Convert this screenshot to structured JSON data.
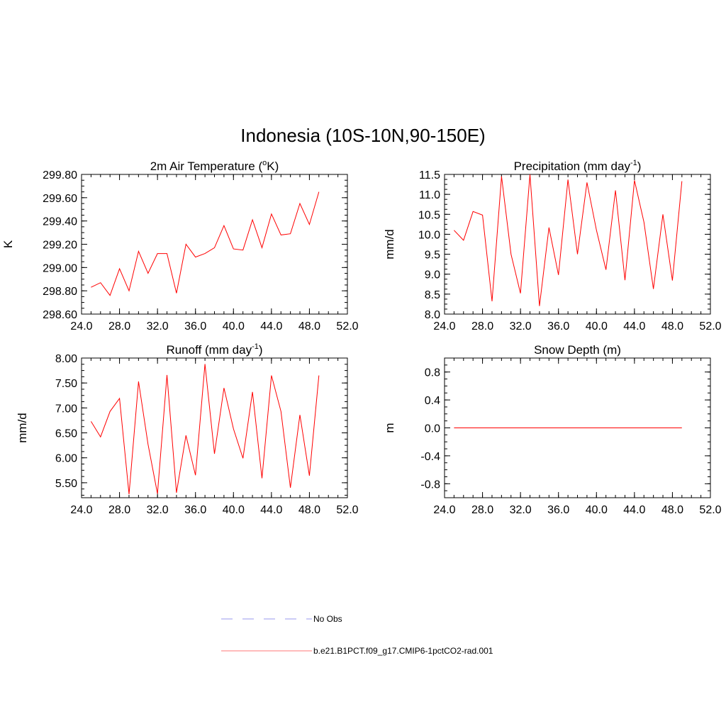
{
  "figure": {
    "title": "Indonesia (10S-10N,90-150E)"
  },
  "legend": {
    "items": [
      {
        "label": "No Obs",
        "color": "#9999ee",
        "dash": true
      },
      {
        "label": "b.e21.B1PCT.f09_g17.CMIP6-1pctCO2-rad.001",
        "color": "#ff7777",
        "dash": false
      }
    ]
  },
  "chart_data": [
    {
      "type": "line",
      "title": "2m Air Temperature (",
      "title_sup": "o",
      "title_after": "K)",
      "ylabel": "K",
      "xlim": [
        24,
        52
      ],
      "ylim": [
        298.6,
        299.8
      ],
      "xticks": [
        24,
        28,
        32,
        36,
        40,
        44,
        48,
        52
      ],
      "xtick_labels": [
        "24.0",
        "28.0",
        "32.0",
        "36.0",
        "40.0",
        "44.0",
        "48.0",
        "52.0"
      ],
      "yticks": [
        298.6,
        298.8,
        299.0,
        299.2,
        299.4,
        299.6,
        299.8
      ],
      "ytick_labels": [
        "298.60",
        "298.80",
        "299.00",
        "299.20",
        "299.40",
        "299.60",
        "299.80"
      ],
      "grid": false,
      "series": [
        {
          "color": "#ff0000",
          "x": [
            25,
            26,
            27,
            28,
            29,
            30,
            31,
            32,
            33,
            34,
            35,
            36,
            37,
            38,
            39,
            40,
            41,
            42,
            43,
            44,
            45,
            46,
            47,
            48,
            49
          ],
          "y": [
            298.83,
            298.87,
            298.76,
            298.99,
            298.8,
            299.14,
            298.95,
            299.12,
            299.12,
            298.78,
            299.2,
            299.09,
            299.12,
            299.17,
            299.36,
            299.16,
            299.15,
            299.41,
            299.17,
            299.46,
            299.28,
            299.29,
            299.55,
            299.37,
            299.65
          ]
        }
      ]
    },
    {
      "type": "line",
      "title": "Precipitation (mm day",
      "title_sup": "-1",
      "title_after": ")",
      "ylabel": "mm/d",
      "xlim": [
        24,
        52
      ],
      "ylim": [
        8.0,
        11.5
      ],
      "xticks": [
        24,
        28,
        32,
        36,
        40,
        44,
        48,
        52
      ],
      "xtick_labels": [
        "24.0",
        "28.0",
        "32.0",
        "36.0",
        "40.0",
        "44.0",
        "48.0",
        "52.0"
      ],
      "yticks": [
        8.0,
        8.5,
        9.0,
        9.5,
        10.0,
        10.5,
        11.0,
        11.5
      ],
      "ytick_labels": [
        "8.0",
        "8.5",
        "9.0",
        "9.5",
        "10.0",
        "10.5",
        "11.0",
        "11.5"
      ],
      "grid": false,
      "series": [
        {
          "color": "#ff0000",
          "x": [
            25,
            26,
            27,
            28,
            29,
            30,
            31,
            32,
            33,
            34,
            35,
            36,
            37,
            38,
            39,
            40,
            41,
            42,
            43,
            44,
            45,
            46,
            47,
            48,
            49
          ],
          "y": [
            10.1,
            9.85,
            10.57,
            10.48,
            8.32,
            11.45,
            9.5,
            8.52,
            11.5,
            8.2,
            10.17,
            8.98,
            11.37,
            9.5,
            11.3,
            10.1,
            9.11,
            11.1,
            8.85,
            11.35,
            10.3,
            8.63,
            10.5,
            8.84,
            11.33
          ]
        }
      ]
    },
    {
      "type": "line",
      "title": "Runoff (mm day",
      "title_sup": "-1",
      "title_after": ")",
      "ylabel": "mm/d",
      "xlim": [
        24,
        52
      ],
      "ylim": [
        5.2,
        8.0
      ],
      "xticks": [
        24,
        28,
        32,
        36,
        40,
        44,
        48,
        52
      ],
      "xtick_labels": [
        "24.0",
        "28.0",
        "32.0",
        "36.0",
        "40.0",
        "44.0",
        "48.0",
        "52.0"
      ],
      "yticks": [
        5.5,
        6.0,
        6.5,
        7.0,
        7.5,
        8.0
      ],
      "ytick_labels": [
        "5.50",
        "6.00",
        "6.50",
        "7.00",
        "7.50",
        "8.00"
      ],
      "grid": false,
      "series": [
        {
          "color": "#ff0000",
          "x": [
            25,
            26,
            27,
            28,
            29,
            30,
            31,
            32,
            33,
            34,
            35,
            36,
            37,
            38,
            39,
            40,
            41,
            42,
            43,
            44,
            45,
            46,
            47,
            48,
            49
          ],
          "y": [
            6.73,
            6.42,
            6.93,
            7.19,
            5.27,
            7.53,
            6.27,
            5.28,
            7.66,
            5.3,
            6.45,
            5.65,
            7.88,
            6.08,
            7.4,
            6.58,
            5.99,
            7.32,
            5.59,
            7.65,
            6.93,
            5.4,
            6.86,
            5.64,
            7.65
          ]
        }
      ]
    },
    {
      "type": "line",
      "title": "Snow Depth (m)",
      "title_sup": "",
      "title_after": "",
      "ylabel": "m",
      "xlim": [
        24,
        52
      ],
      "ylim": [
        -1.0,
        1.0
      ],
      "xticks": [
        24,
        28,
        32,
        36,
        40,
        44,
        48,
        52
      ],
      "xtick_labels": [
        "24.0",
        "28.0",
        "32.0",
        "36.0",
        "40.0",
        "44.0",
        "48.0",
        "52.0"
      ],
      "yticks": [
        -0.8,
        -0.4,
        0.0,
        0.4,
        0.8
      ],
      "ytick_labels": [
        "-0.8",
        "-0.4",
        "0.0",
        "0.4",
        "0.8"
      ],
      "grid": false,
      "series": [
        {
          "color": "#ff0000",
          "x": [
            25,
            26,
            27,
            28,
            29,
            30,
            31,
            32,
            33,
            34,
            35,
            36,
            37,
            38,
            39,
            40,
            41,
            42,
            43,
            44,
            45,
            46,
            47,
            48,
            49
          ],
          "y": [
            0,
            0,
            0,
            0,
            0,
            0,
            0,
            0,
            0,
            0,
            0,
            0,
            0,
            0,
            0,
            0,
            0,
            0,
            0,
            0,
            0,
            0,
            0,
            0,
            0
          ]
        }
      ]
    }
  ]
}
